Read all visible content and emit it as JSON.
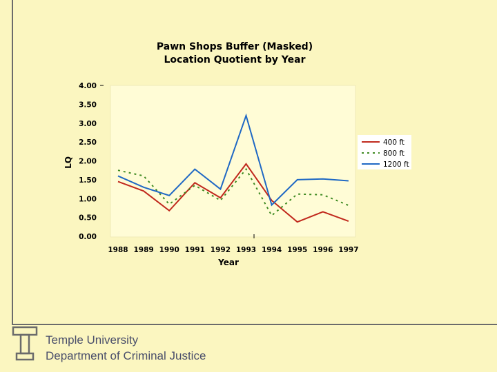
{
  "chart_data": {
    "type": "line",
    "title": "Pawn Shops Buffer (Masked)",
    "subtitle": "Location Quotient by Year",
    "xlabel": "Year",
    "ylabel": "LQ",
    "ylim": [
      0,
      4
    ],
    "yticks": [
      "0.00",
      "0.50",
      "1.00",
      "1.50",
      "2.00",
      "2.50",
      "3.00",
      "3.50",
      "4.00"
    ],
    "categories": [
      "1988",
      "1989",
      "1990",
      "1991",
      "1992",
      "1993",
      "1994",
      "1995",
      "1996",
      "1997"
    ],
    "series": [
      {
        "name": "400 ft",
        "color": "#c0281c",
        "dash": "",
        "values": [
          1.45,
          1.2,
          0.68,
          1.42,
          1.02,
          1.92,
          0.95,
          0.38,
          0.65,
          0.4
        ]
      },
      {
        "name": "800 ft",
        "color": "#3f8a22",
        "dash": "3,5",
        "values": [
          1.75,
          1.6,
          0.85,
          1.35,
          0.95,
          1.78,
          0.55,
          1.12,
          1.1,
          0.82
        ]
      },
      {
        "name": "1200 ft",
        "color": "#1f68c4",
        "dash": "",
        "values": [
          1.6,
          1.3,
          1.08,
          1.78,
          1.25,
          3.2,
          0.83,
          1.5,
          1.52,
          1.47
        ]
      }
    ],
    "legend_position": "right"
  },
  "footer": {
    "line1": "Temple University",
    "line2": "Department of Criminal Justice"
  },
  "logo": {
    "name": "temple-t-logo",
    "color": "#6b6b6b"
  }
}
